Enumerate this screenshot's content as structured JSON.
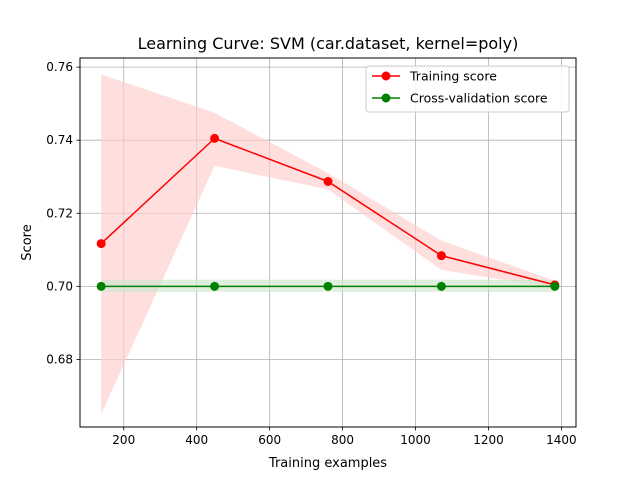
{
  "chart_data": {
    "type": "line",
    "title": "Learning Curve: SVM (car.dataset, kernel=poly)",
    "xlabel": "Training examples",
    "ylabel": "Score",
    "xlim": [
      80,
      1440
    ],
    "ylim": [
      0.6615,
      0.7625
    ],
    "xticks": [
      200,
      400,
      600,
      800,
      1000,
      1200,
      1400
    ],
    "xtick_labels": [
      "200",
      "400",
      "600",
      "800",
      "1000",
      "1200",
      "1400"
    ],
    "yticks": [
      0.68,
      0.7,
      0.72,
      0.74,
      0.76
    ],
    "ytick_labels": [
      "0.68",
      "0.70",
      "0.72",
      "0.74",
      "0.76"
    ],
    "grid": true,
    "legend_position": "top-right",
    "x": [
      138,
      449,
      760,
      1071,
      1382
    ],
    "series": [
      {
        "name": "Training score",
        "color": "#ff0000",
        "marker": "circle",
        "values": [
          0.7117,
          0.7405,
          0.7287,
          0.7084,
          0.7004
        ],
        "band_low": [
          0.665,
          0.733,
          0.7265,
          0.7045,
          0.6995
        ],
        "band_high": [
          0.758,
          0.7475,
          0.731,
          0.7125,
          0.7015
        ],
        "band_color": "#ffcccc"
      },
      {
        "name": "Cross-validation score",
        "color": "#008000",
        "marker": "circle",
        "values": [
          0.7,
          0.7,
          0.7,
          0.7,
          0.7
        ],
        "band_low": [
          0.6985,
          0.6985,
          0.6985,
          0.6985,
          0.6985
        ],
        "band_high": [
          0.7018,
          0.7018,
          0.7018,
          0.7018,
          0.7018
        ],
        "band_color": "#cce6cc"
      }
    ]
  }
}
